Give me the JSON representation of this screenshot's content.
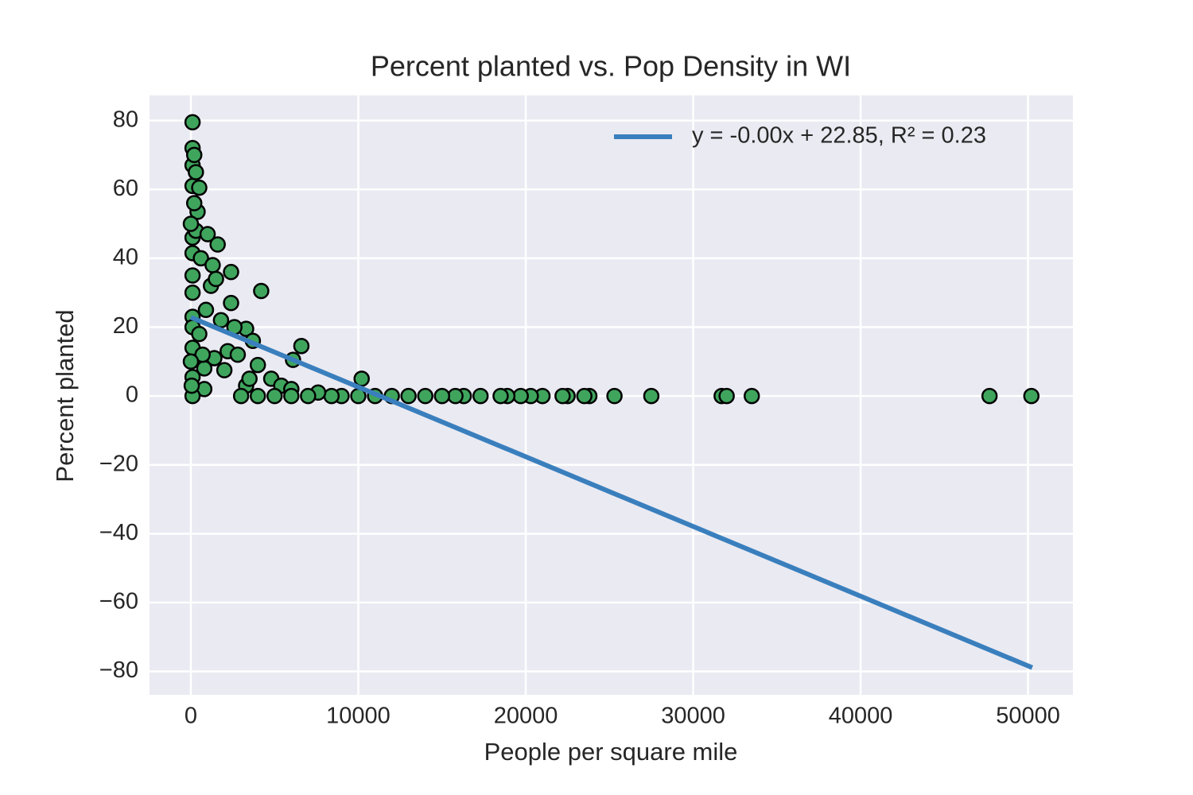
{
  "chart_data": {
    "type": "scatter",
    "title": "Percent planted vs. Pop Density in WI",
    "xlabel": "People per square mile",
    "ylabel": "Percent planted",
    "xlim": [
      -2470,
      52680
    ],
    "ylim": [
      -86.8,
      87.3
    ],
    "xticks": [
      0,
      10000,
      20000,
      30000,
      40000,
      50000
    ],
    "yticks": [
      {
        "value": -80,
        "label": "−80"
      },
      {
        "value": -60,
        "label": "−60"
      },
      {
        "value": -40,
        "label": "−40"
      },
      {
        "value": -20,
        "label": "−20"
      },
      0,
      20,
      40,
      60,
      80
    ],
    "grid": true,
    "legend": "upper right",
    "series": [
      {
        "type": "scatter",
        "color": "#3fa55d",
        "edgecolor": "#000000",
        "x": [
          47700,
          50200,
          33500,
          31700,
          32000,
          27500,
          25300,
          23800,
          23500,
          22500,
          22200,
          21000,
          20300,
          19700,
          18900,
          18500,
          17300,
          16300,
          15800,
          15000,
          14000,
          13000,
          12000,
          11000,
          10200,
          10000,
          9000,
          8400,
          7600,
          6600,
          6100,
          4200,
          2400,
          2400,
          1600,
          1200,
          3300,
          3700,
          4800,
          5400,
          6000,
          3300,
          2000,
          2200,
          1400,
          800,
          800,
          400,
          100,
          100,
          100,
          100,
          100,
          100,
          100,
          100,
          100,
          100,
          100,
          100,
          100,
          200,
          300,
          500,
          600,
          1000,
          1300,
          1500,
          900,
          1800,
          2600,
          2800,
          4000,
          3500,
          500,
          700,
          3000,
          4000,
          5000,
          6000,
          7000,
          200,
          300,
          0,
          0,
          50
        ],
        "values": [
          0,
          0,
          0,
          0,
          0,
          0,
          0,
          0,
          0,
          0,
          0,
          0,
          0,
          0,
          0,
          0,
          0,
          0,
          0,
          0,
          0,
          0,
          0,
          0,
          5,
          0,
          0,
          0,
          1,
          14.5,
          10.5,
          30.5,
          36,
          27,
          44,
          32,
          19.5,
          16,
          5,
          3,
          2,
          3,
          7.5,
          13,
          11,
          8,
          2,
          53.5,
          79.5,
          72,
          67,
          61,
          46,
          41.5,
          35,
          30,
          23,
          20,
          14,
          5.5,
          0,
          56,
          48,
          60.5,
          40,
          47,
          38,
          34,
          25,
          22,
          20,
          12,
          9,
          5,
          18,
          12,
          0,
          0,
          0,
          0,
          0,
          70,
          65,
          50,
          10,
          3
        ]
      },
      {
        "type": "line",
        "name": "y = -0.00x + 22.85, R² = 0.23",
        "color": "#3a7fbd",
        "x": [
          0,
          50250
        ],
        "values": [
          22.85,
          -78.9
        ]
      }
    ]
  }
}
